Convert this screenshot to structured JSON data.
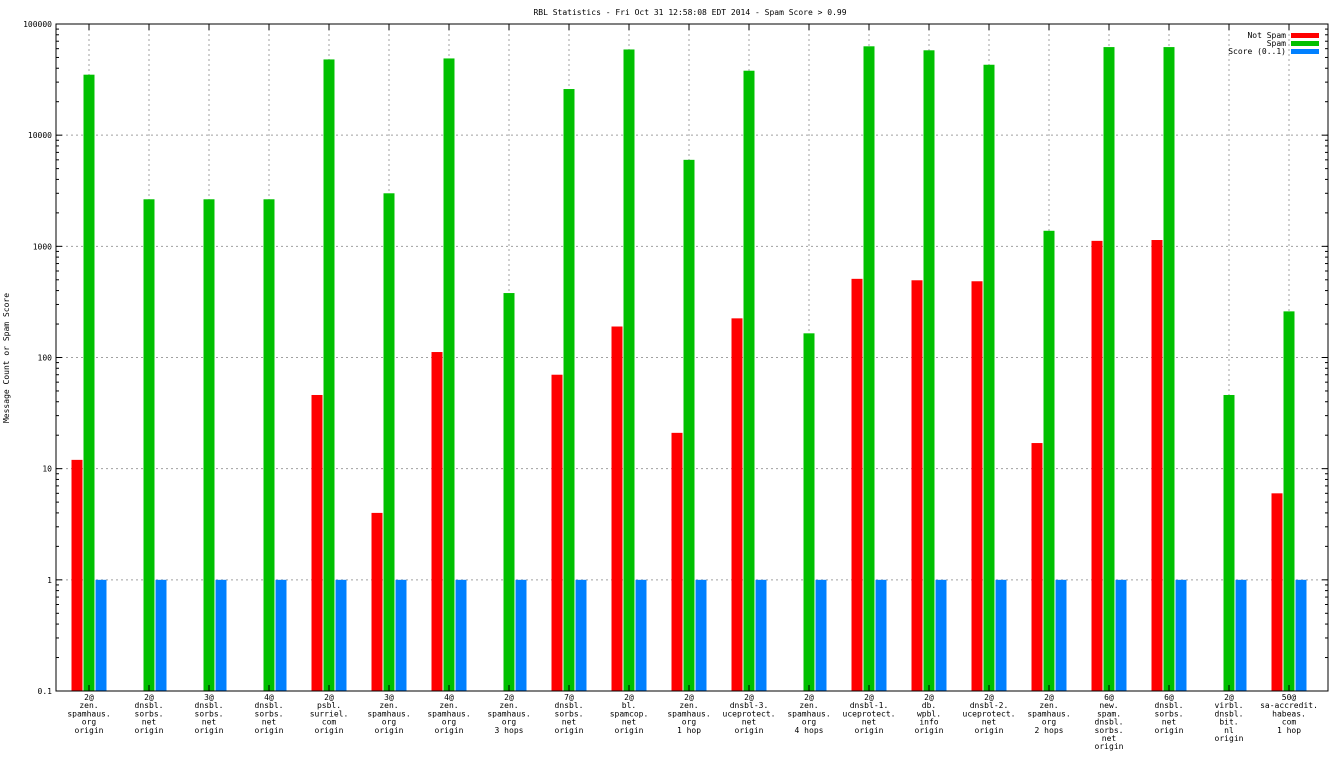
{
  "chart_data": {
    "type": "bar",
    "title": "RBL Statistics - Fri Oct 31 12:58:08 EDT 2014 - Spam Score > 0.99",
    "ylabel": "Message Count or Spam Score",
    "xlabel": "",
    "yscale": "log",
    "ylim": [
      0.1,
      100000
    ],
    "yticks": [
      "0.1",
      "1",
      "10",
      "100",
      "1000",
      "10000",
      "100000"
    ],
    "grid": true,
    "legend_position": "top-right",
    "categories": [
      [
        "2@",
        "zen.",
        "spamhaus.",
        "org",
        "origin"
      ],
      [
        "2@",
        "dnsbl.",
        "sorbs.",
        "net",
        "origin"
      ],
      [
        "3@",
        "dnsbl.",
        "sorbs.",
        "net",
        "origin"
      ],
      [
        "4@",
        "dnsbl.",
        "sorbs.",
        "net",
        "origin"
      ],
      [
        "2@",
        "psbl.",
        "surriel.",
        "com",
        "origin"
      ],
      [
        "3@",
        "zen.",
        "spamhaus.",
        "org",
        "origin"
      ],
      [
        "4@",
        "zen.",
        "spamhaus.",
        "org",
        "origin"
      ],
      [
        "2@",
        "zen.",
        "spamhaus.",
        "org",
        "3 hops"
      ],
      [
        "7@",
        "dnsbl.",
        "sorbs.",
        "net",
        "origin"
      ],
      [
        "2@",
        "bl.",
        "spamcop.",
        "net",
        "origin"
      ],
      [
        "2@",
        "zen.",
        "spamhaus.",
        "org",
        "1 hop"
      ],
      [
        "2@",
        "dnsbl-3.",
        "uceprotect.",
        "net",
        "origin"
      ],
      [
        "2@",
        "zen.",
        "spamhaus.",
        "org",
        "4 hops"
      ],
      [
        "2@",
        "dnsbl-1.",
        "uceprotect.",
        "net",
        "origin"
      ],
      [
        "2@",
        "db.",
        "wpbl.",
        "info",
        "origin"
      ],
      [
        "2@",
        "dnsbl-2.",
        "uceprotect.",
        "net",
        "origin"
      ],
      [
        "2@",
        "zen.",
        "spamhaus.",
        "org",
        "2 hops"
      ],
      [
        "6@",
        "new.",
        "spam.",
        "dnsbl.",
        "sorbs.",
        "net",
        "origin"
      ],
      [
        "6@",
        "dnsbl.",
        "sorbs.",
        "net",
        "origin"
      ],
      [
        "2@",
        "virbl.",
        "dnsbl.",
        "bit.",
        "nl",
        "origin"
      ],
      [
        "50@",
        "sa-accredit.",
        "habeas.",
        "com",
        "1 hop"
      ]
    ],
    "series": [
      {
        "name": "Not Spam",
        "color": "#ff0000",
        "values": [
          12,
          null,
          null,
          null,
          46,
          4,
          112,
          null,
          70,
          190,
          21,
          225,
          null,
          510,
          495,
          485,
          17,
          1120,
          1140,
          null,
          6
        ]
      },
      {
        "name": "Spam",
        "color": "#00c000",
        "values": [
          35000,
          2650,
          2650,
          2650,
          48000,
          3000,
          49000,
          380,
          26000,
          59000,
          6000,
          38000,
          165,
          63000,
          58000,
          43000,
          1380,
          62000,
          62000,
          46,
          260
        ]
      },
      {
        "name": "Score (0..1)",
        "color": "#0080ff",
        "values": [
          1,
          1,
          1,
          1,
          1,
          1,
          1,
          1,
          1,
          1,
          1,
          1,
          1,
          1,
          1,
          1,
          1,
          1,
          1,
          1,
          1
        ]
      }
    ]
  }
}
